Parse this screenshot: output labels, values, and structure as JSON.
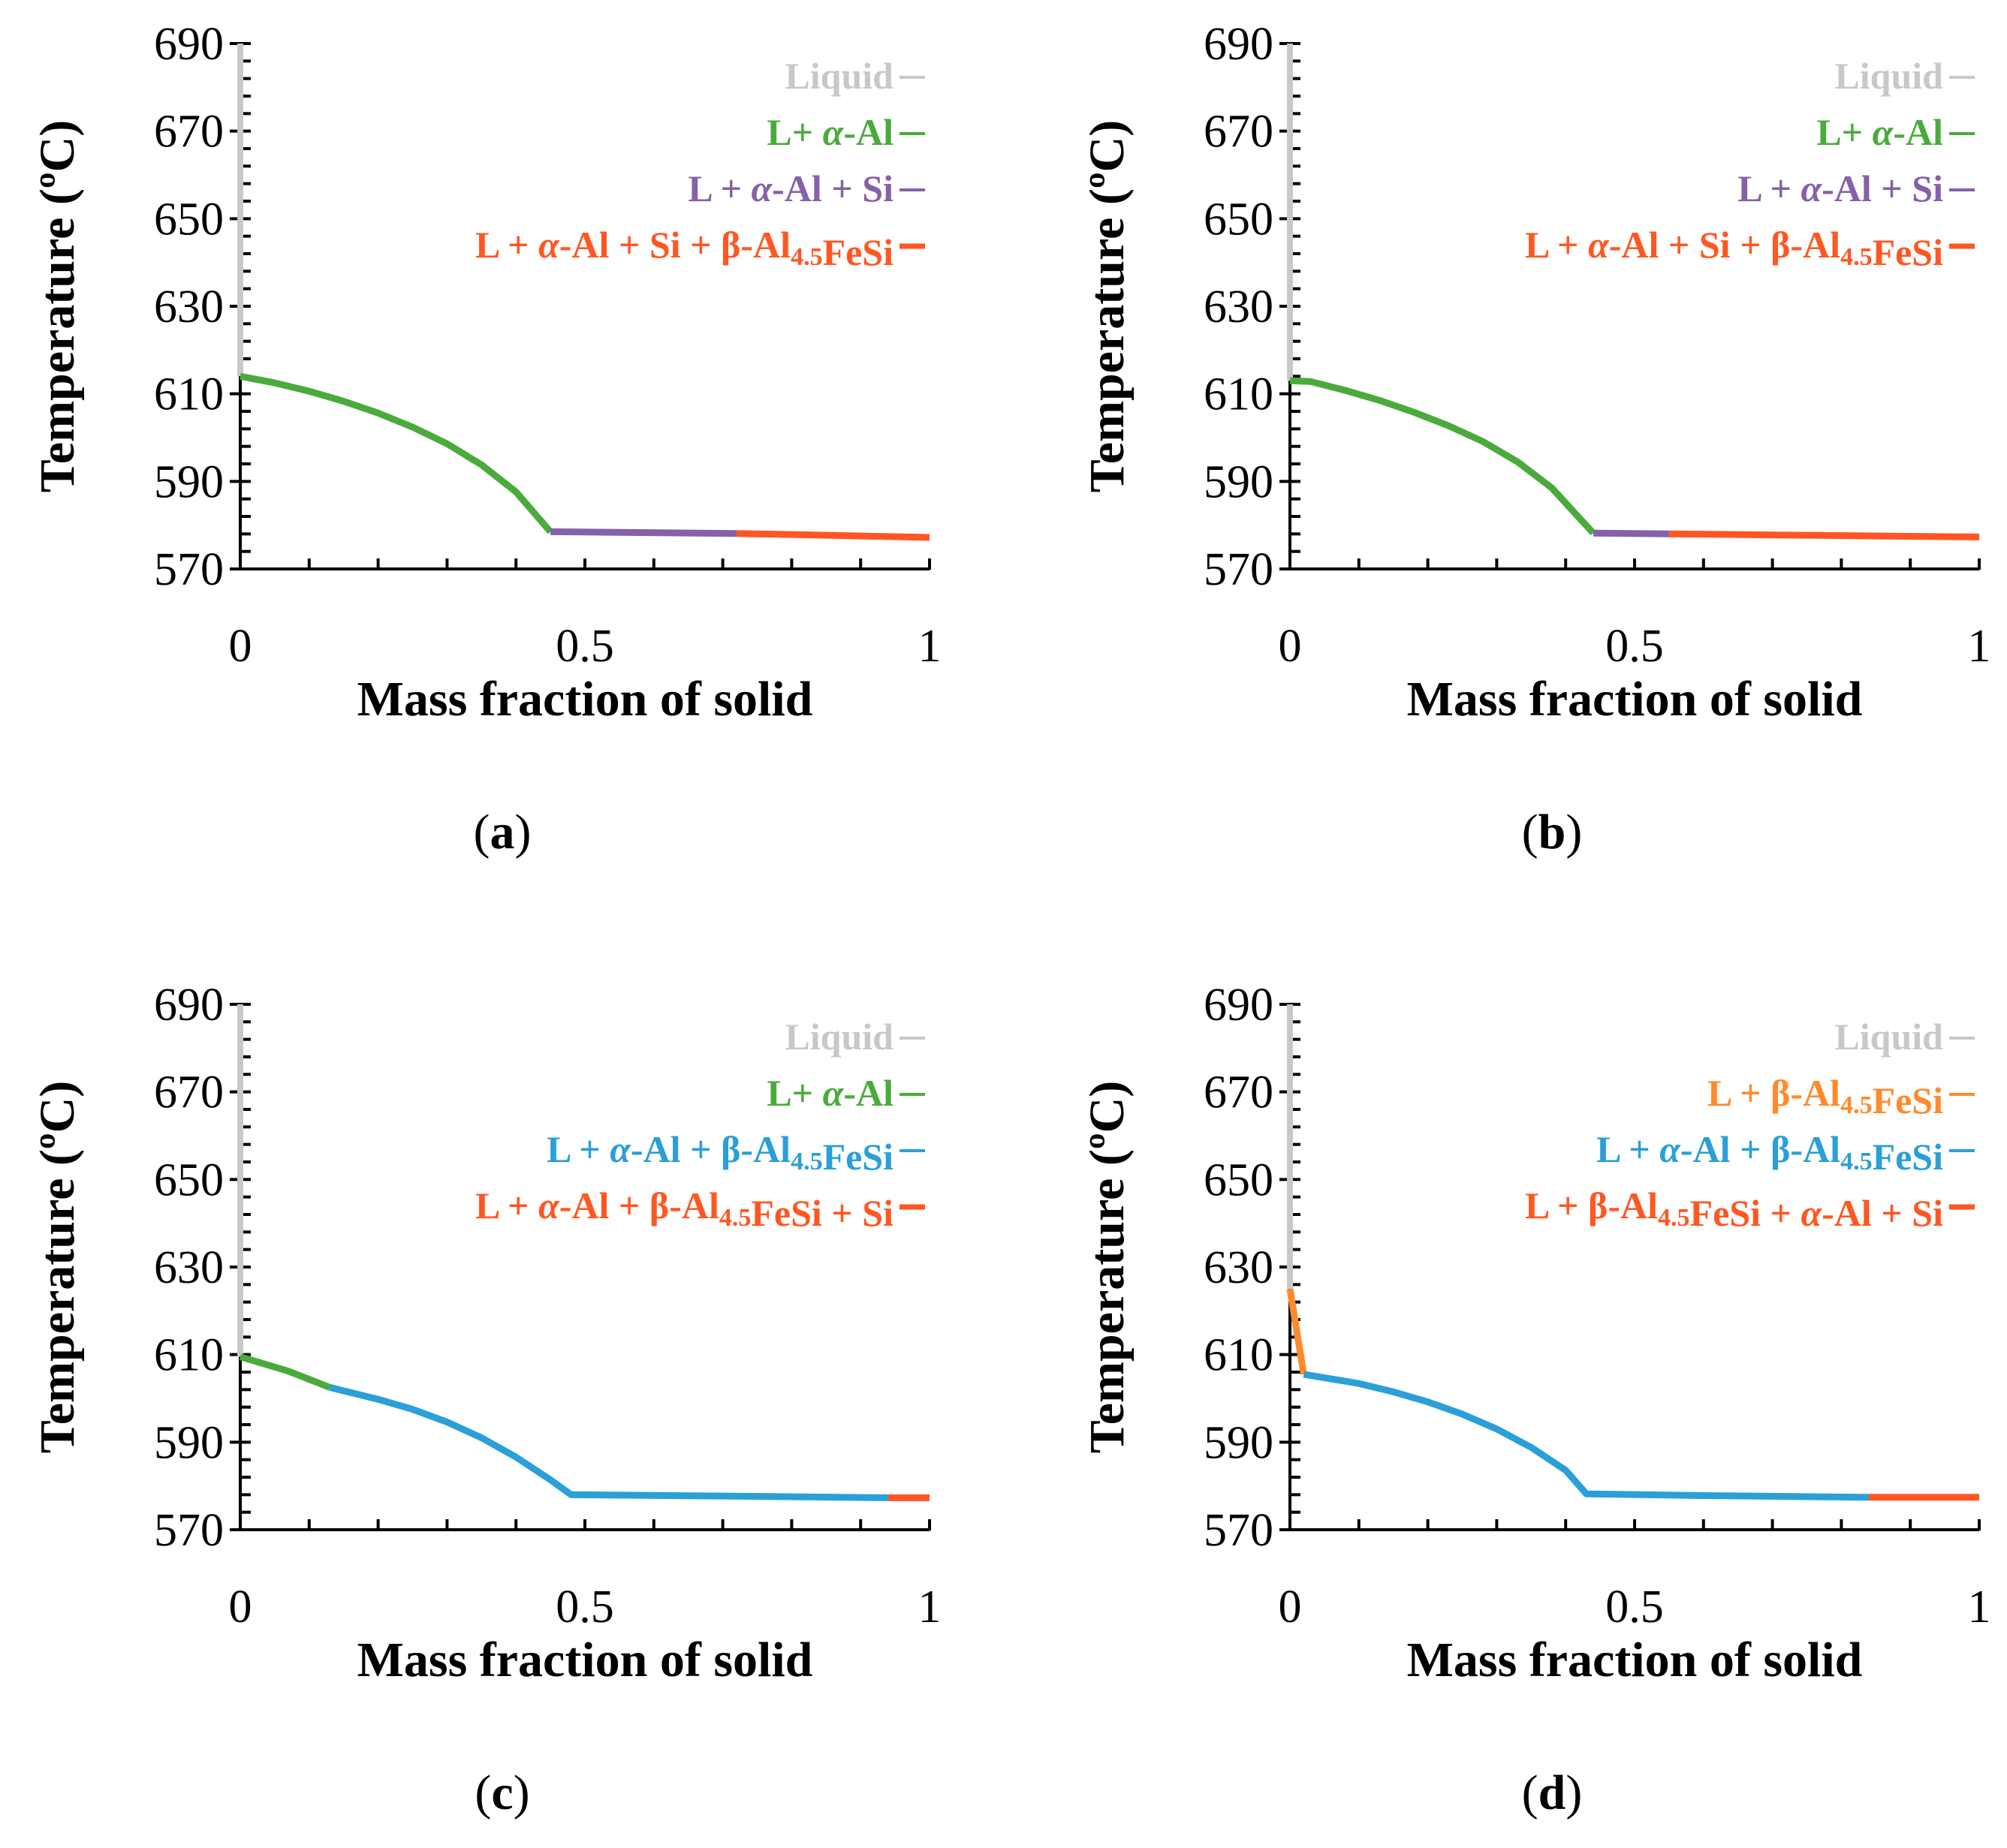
{
  "chart_data": [
    {
      "type": "line",
      "panel_label": "a",
      "xlabel": "Mass fraction of solid",
      "ylabel": "Temperature (ºC)",
      "xlim": [
        0,
        1
      ],
      "ylim": [
        570,
        690
      ],
      "xticks": [
        "0",
        "0.5",
        "1"
      ],
      "yticks": [
        "570",
        "590",
        "610",
        "630",
        "650",
        "670",
        "690"
      ],
      "legend_position": "top-right",
      "series": [
        {
          "name": "Liquid",
          "color": "#c8c8c8",
          "segments": [
            [
              {
                "text": "Liquid"
              }
            ]
          ],
          "points": [
            [
              0,
              690
            ],
            [
              0,
              614
            ]
          ]
        },
        {
          "name": "L+ α-Al",
          "color": "#4aab3c",
          "segments": [
            [
              {
                "text": "L+ "
              },
              {
                "text": "α",
                "italic": true
              },
              {
                "text": "-Al"
              }
            ]
          ],
          "points": [
            [
              0,
              614
            ],
            [
              0.05,
              612.5
            ],
            [
              0.1,
              610.6
            ],
            [
              0.15,
              608.3
            ],
            [
              0.2,
              605.6
            ],
            [
              0.25,
              602.4
            ],
            [
              0.3,
              598.6
            ],
            [
              0.35,
              593.8
            ],
            [
              0.4,
              587.6
            ],
            [
              0.45,
              578.5
            ]
          ]
        },
        {
          "name": "L + α-Al + Si",
          "color": "#8660a8",
          "segments": [
            [
              {
                "text": "L + "
              },
              {
                "text": "α",
                "italic": true
              },
              {
                "text": "-Al + Si"
              }
            ]
          ],
          "points": [
            [
              0.45,
              578.5
            ],
            [
              0.72,
              578.1
            ]
          ]
        },
        {
          "name": "L + α-Al + Si + β-Al4.5FeSi",
          "color": "#ff5722",
          "segments": [
            [
              {
                "text": "L + "
              },
              {
                "text": "α",
                "italic": true
              },
              {
                "text": "-Al + Si + β-Al"
              },
              {
                "text": "4.5",
                "sub": true
              },
              {
                "text": "FeSi"
              }
            ]
          ],
          "points": [
            [
              0.72,
              578.1
            ],
            [
              1.0,
              577.2
            ]
          ]
        }
      ]
    },
    {
      "type": "line",
      "panel_label": "b",
      "xlabel": "Mass fraction of solid",
      "ylabel": "Temperature (ºC)",
      "xlim": [
        0,
        1
      ],
      "ylim": [
        570,
        690
      ],
      "xticks": [
        "0",
        "0.5",
        "1"
      ],
      "yticks": [
        "570",
        "590",
        "610",
        "630",
        "650",
        "670",
        "690"
      ],
      "legend_position": "top-right",
      "series": [
        {
          "name": "Liquid",
          "color": "#c8c8c8",
          "segments": [
            [
              {
                "text": "Liquid"
              }
            ]
          ],
          "points": [
            [
              0,
              690
            ],
            [
              0,
              613
            ]
          ]
        },
        {
          "name": "L+ α-Al",
          "color": "#4aab3c",
          "segments": [
            [
              {
                "text": "L+ "
              },
              {
                "text": "α",
                "italic": true
              },
              {
                "text": "-Al"
              }
            ]
          ],
          "points": [
            [
              0,
              613
            ],
            [
              0.03,
              612.8
            ],
            [
              0.08,
              610.8
            ],
            [
              0.13,
              608.5
            ],
            [
              0.18,
              605.8
            ],
            [
              0.23,
              602.7
            ],
            [
              0.28,
              599.1
            ],
            [
              0.33,
              594.5
            ],
            [
              0.38,
              588.5
            ],
            [
              0.44,
              578.2
            ]
          ]
        },
        {
          "name": "L + α-Al + Si",
          "color": "#8660a8",
          "segments": [
            [
              {
                "text": "L + "
              },
              {
                "text": "α",
                "italic": true
              },
              {
                "text": "-Al + Si"
              }
            ]
          ],
          "points": [
            [
              0.44,
              578.2
            ],
            [
              0.55,
              578.0
            ]
          ]
        },
        {
          "name": "L + α-Al + Si + β-Al4.5FeSi",
          "color": "#ff5722",
          "segments": [
            [
              {
                "text": "L + "
              },
              {
                "text": "α",
                "italic": true
              },
              {
                "text": "-Al + Si + β-Al"
              },
              {
                "text": "4.5",
                "sub": true
              },
              {
                "text": "FeSi"
              }
            ]
          ],
          "points": [
            [
              0.55,
              578.0
            ],
            [
              1.0,
              577.3
            ]
          ]
        }
      ]
    },
    {
      "type": "line",
      "panel_label": "c",
      "xlabel": "Mass fraction of solid",
      "ylabel": "Temperature (ºC)",
      "xlim": [
        0,
        1
      ],
      "ylim": [
        570,
        690
      ],
      "xticks": [
        "0",
        "0.5",
        "1"
      ],
      "yticks": [
        "570",
        "590",
        "610",
        "630",
        "650",
        "670",
        "690"
      ],
      "legend_position": "top-right",
      "series": [
        {
          "name": "Liquid",
          "color": "#c8c8c8",
          "segments": [
            [
              {
                "text": "Liquid"
              }
            ]
          ],
          "points": [
            [
              0,
              690
            ],
            [
              0,
              609.5
            ]
          ]
        },
        {
          "name": "L+ α-Al",
          "color": "#4aab3c",
          "segments": [
            [
              {
                "text": "L+ "
              },
              {
                "text": "α",
                "italic": true
              },
              {
                "text": "-Al"
              }
            ]
          ],
          "points": [
            [
              0,
              609.5
            ],
            [
              0.07,
              606.2
            ],
            [
              0.13,
              602.5
            ]
          ]
        },
        {
          "name": "L + α-Al + β-Al4.5FeSi",
          "color": "#2a9fd8",
          "segments": [
            [
              {
                "text": "L + "
              },
              {
                "text": "α",
                "italic": true
              },
              {
                "text": "-Al + β-Al"
              },
              {
                "text": "4.5",
                "sub": true
              },
              {
                "text": "FeSi"
              }
            ]
          ],
          "points": [
            [
              0.13,
              602.5
            ],
            [
              0.2,
              599.8
            ],
            [
              0.25,
              597.5
            ],
            [
              0.3,
              594.6
            ],
            [
              0.35,
              591.0
            ],
            [
              0.4,
              586.6
            ],
            [
              0.45,
              581.4
            ],
            [
              0.48,
              578.0
            ],
            [
              0.7,
              577.7
            ],
            [
              0.94,
              577.3
            ]
          ]
        },
        {
          "name": "L + α-Al + β-Al4.5FeSi + Si",
          "color": "#ff5722",
          "segments": [
            [
              {
                "text": "L + "
              },
              {
                "text": "α",
                "italic": true
              },
              {
                "text": "-Al + β-Al"
              },
              {
                "text": "4.5",
                "sub": true
              },
              {
                "text": "FeSi + Si"
              }
            ]
          ],
          "points": [
            [
              0.94,
              577.3
            ],
            [
              1.0,
              577.3
            ]
          ]
        }
      ]
    },
    {
      "type": "line",
      "panel_label": "d",
      "xlabel": "Mass fraction of solid",
      "ylabel": "Temperature (ºC)",
      "xlim": [
        0,
        1
      ],
      "ylim": [
        570,
        690
      ],
      "xticks": [
        "0",
        "0.5",
        "1"
      ],
      "yticks": [
        "570",
        "590",
        "610",
        "630",
        "650",
        "670",
        "690"
      ],
      "legend_position": "top-right",
      "series": [
        {
          "name": "Liquid",
          "color": "#c8c8c8",
          "segments": [
            [
              {
                "text": "Liquid"
              }
            ]
          ],
          "points": [
            [
              0,
              690
            ],
            [
              0,
              625
            ]
          ]
        },
        {
          "name": "L + β-Al4.5FeSi",
          "color": "#ff8a2b",
          "segments": [
            [
              {
                "text": "L + β-Al"
              },
              {
                "text": "4.5",
                "sub": true
              },
              {
                "text": "FeSi"
              }
            ]
          ],
          "points": [
            [
              0,
              625
            ],
            [
              0.02,
              605.5
            ]
          ]
        },
        {
          "name": "L + α-Al + β-Al4.5FeSi",
          "color": "#2a9fd8",
          "segments": [
            [
              {
                "text": "L + "
              },
              {
                "text": "α",
                "italic": true
              },
              {
                "text": "-Al + β-Al"
              },
              {
                "text": "4.5",
                "sub": true
              },
              {
                "text": "FeSi"
              }
            ]
          ],
          "points": [
            [
              0.02,
              605.5
            ],
            [
              0.1,
              603.4
            ],
            [
              0.15,
              601.5
            ],
            [
              0.2,
              599.2
            ],
            [
              0.25,
              596.4
            ],
            [
              0.3,
              593.0
            ],
            [
              0.35,
              588.8
            ],
            [
              0.4,
              583.6
            ],
            [
              0.43,
              578.2
            ],
            [
              0.6,
              577.8
            ],
            [
              0.84,
              577.4
            ]
          ]
        },
        {
          "name": "L + β-Al4.5FeSi + α-Al + Si",
          "color": "#ff5722",
          "segments": [
            [
              {
                "text": "L + β-Al"
              },
              {
                "text": "4.5",
                "sub": true
              },
              {
                "text": "FeSi + "
              },
              {
                "text": "α",
                "italic": true
              },
              {
                "text": "-Al + Si"
              }
            ]
          ],
          "points": [
            [
              0.84,
              577.4
            ],
            [
              1.0,
              577.4
            ]
          ]
        }
      ]
    }
  ]
}
